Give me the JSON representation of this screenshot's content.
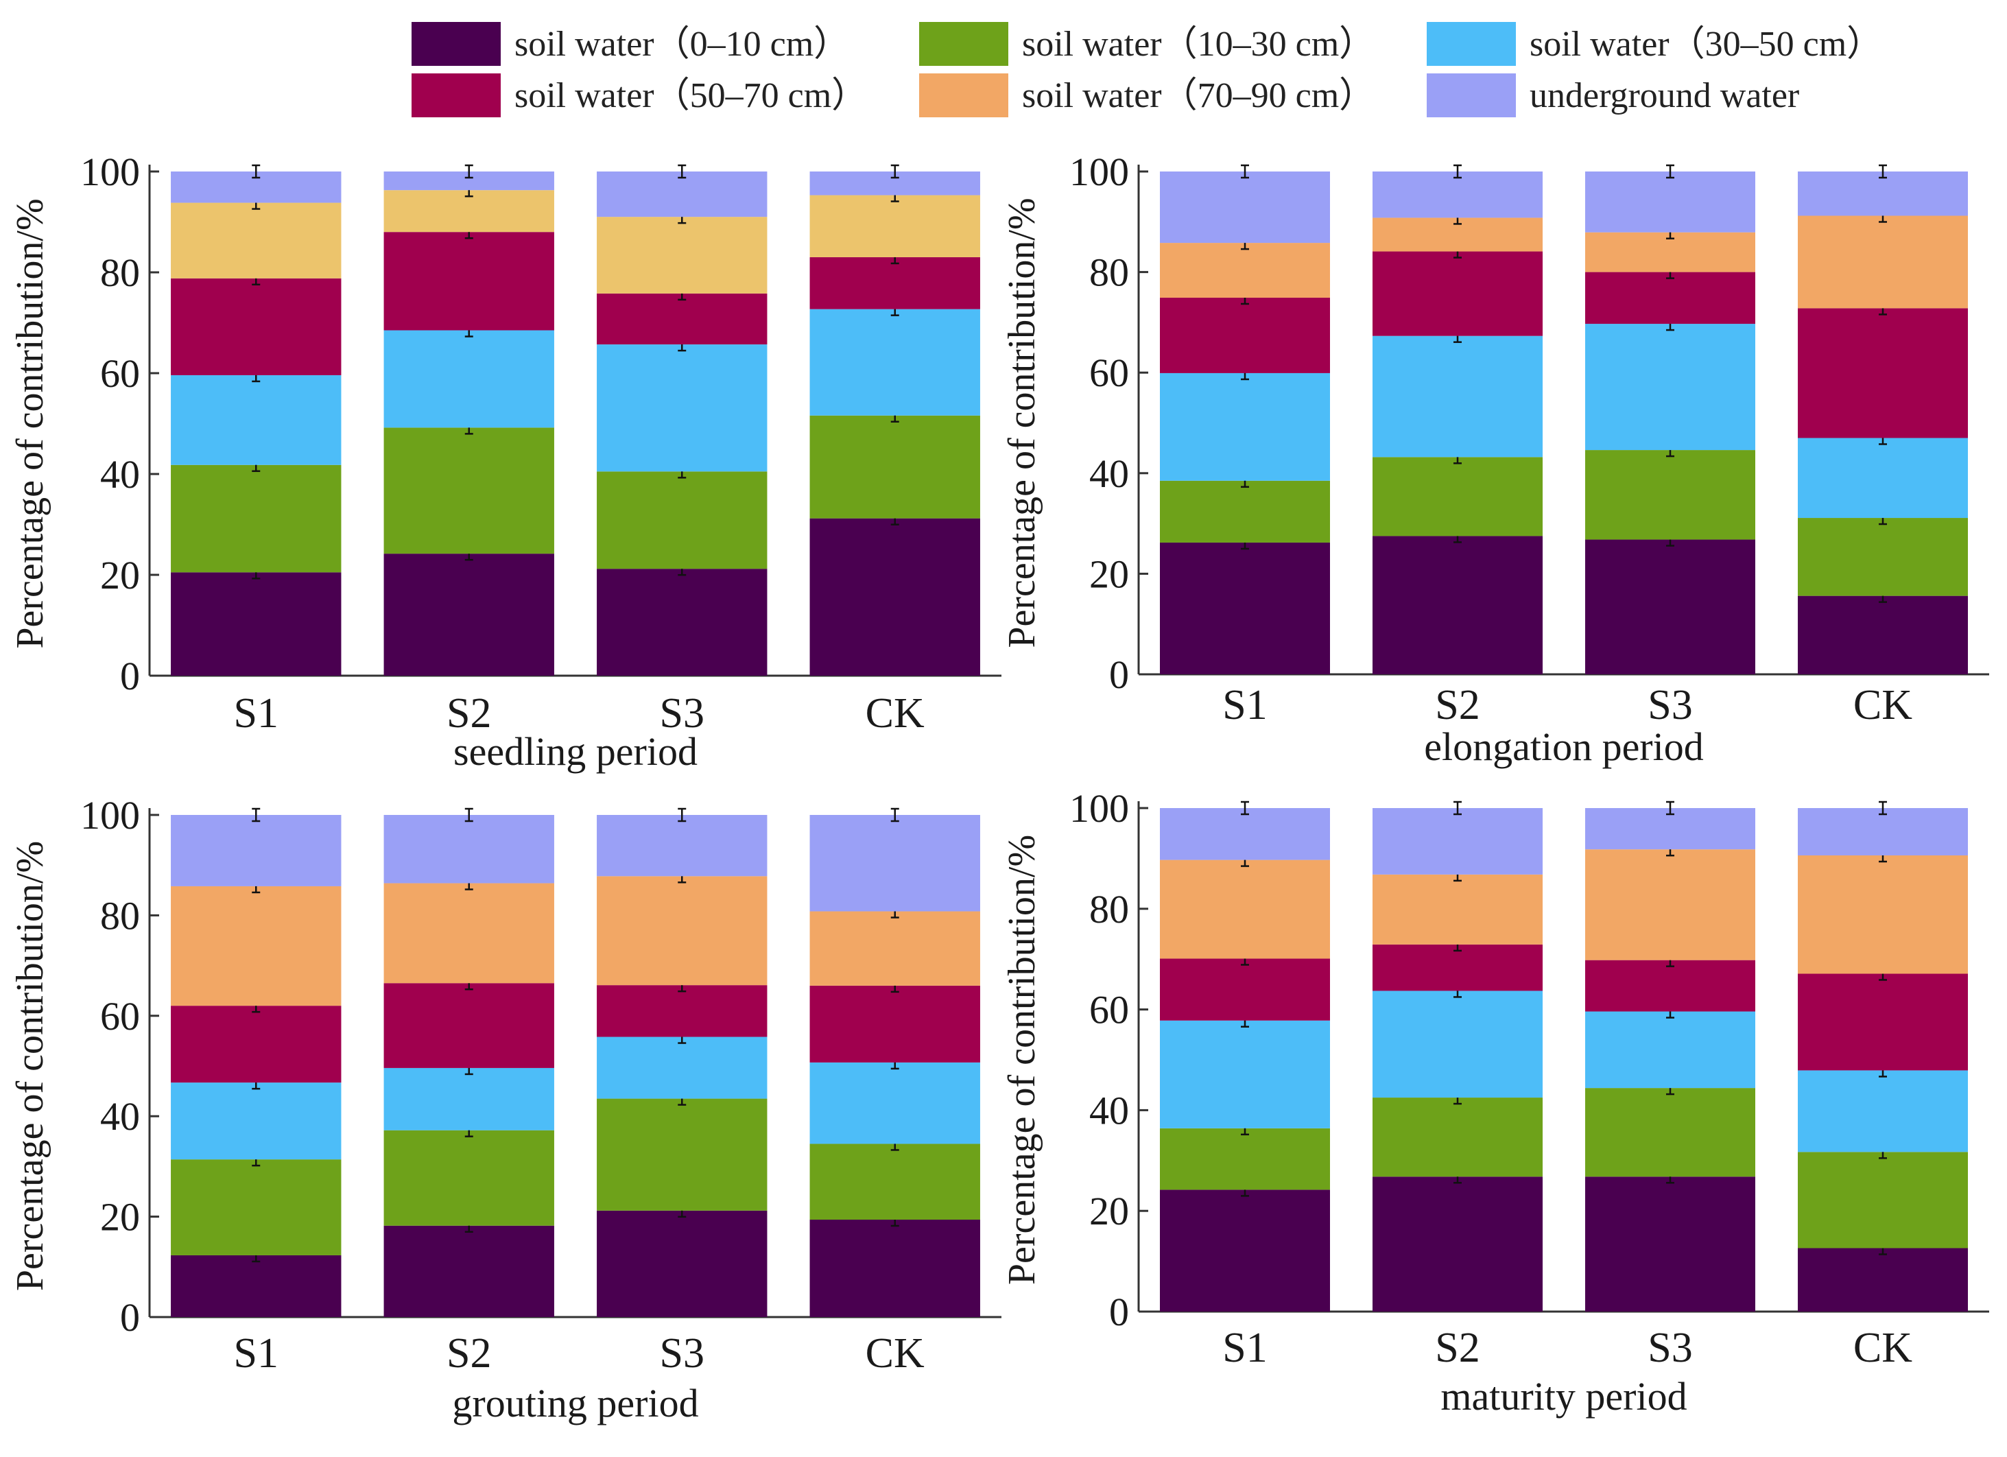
{
  "legend": [
    {
      "name": "soil water（0–10 cm）",
      "color": "#4a0050"
    },
    {
      "name": "soil water（10–30 cm）",
      "color": "#6ea21a"
    },
    {
      "name": "soil water（30–50 cm）",
      "color": "#4dbdf8"
    },
    {
      "name": "soil water（50–70 cm）",
      "color": "#a0004e"
    },
    {
      "name": "soil water（70–90 cm）",
      "color": "#f2a765"
    },
    {
      "name": "underground water",
      "color": "#9aa0f6"
    }
  ],
  "chart_data": [
    {
      "type": "bar",
      "stacked": true,
      "title": "seedling period",
      "xlabel": "seedling period",
      "ylabel": "Percentage of contribution/%",
      "ylim": [
        0,
        100
      ],
      "yticks": [
        "0",
        "20",
        "40",
        "60",
        "80",
        "100"
      ],
      "categories": [
        "S1",
        "S2",
        "S3",
        "CK"
      ],
      "series": [
        {
          "name": "soil water（0–10 cm）",
          "color": "#4a0050",
          "values": [
            20.5,
            24.2,
            21.2,
            31.2
          ]
        },
        {
          "name": "soil water（10–30 cm）",
          "color": "#6ea21a",
          "values": [
            21.3,
            25.0,
            19.3,
            20.4
          ]
        },
        {
          "name": "soil water（30–50 cm）",
          "color": "#4dbdf8",
          "values": [
            17.8,
            19.3,
            25.2,
            21.1
          ]
        },
        {
          "name": "soil water（50–70 cm）",
          "color": "#a0004e",
          "values": [
            19.2,
            19.5,
            10.1,
            10.3
          ]
        },
        {
          "name": "soil water（70–90 cm）",
          "color": "#ecc46c",
          "values": [
            15.0,
            8.3,
            15.2,
            12.3
          ]
        },
        {
          "name": "underground water",
          "color": "#9aa0f6",
          "values": [
            6.2,
            3.7,
            9.0,
            4.7
          ]
        }
      ]
    },
    {
      "type": "bar",
      "stacked": true,
      "title": "elongation period",
      "xlabel": "elongation period",
      "ylabel": "Percentage of contribution/%",
      "ylim": [
        0,
        100
      ],
      "yticks": [
        "0",
        "20",
        "40",
        "60",
        "80",
        "100"
      ],
      "categories": [
        "S1",
        "S2",
        "S3",
        "CK"
      ],
      "series": [
        {
          "name": "soil water（0–10 cm）",
          "color": "#4a0050",
          "values": [
            26.2,
            27.5,
            26.8,
            15.6
          ]
        },
        {
          "name": "soil water（10–30 cm）",
          "color": "#6ea21a",
          "values": [
            12.3,
            15.7,
            17.8,
            15.5
          ]
        },
        {
          "name": "soil water（30–50 cm）",
          "color": "#4dbdf8",
          "values": [
            21.4,
            24.1,
            25.1,
            15.9
          ]
        },
        {
          "name": "soil water（50–70 cm）",
          "color": "#a0004e",
          "values": [
            15.0,
            16.8,
            10.3,
            25.8
          ]
        },
        {
          "name": "soil water（70–90 cm）",
          "color": "#f2a765",
          "values": [
            10.9,
            6.7,
            7.9,
            18.4
          ]
        },
        {
          "name": "underground water",
          "color": "#9aa0f6",
          "values": [
            14.2,
            9.2,
            12.1,
            8.8
          ]
        }
      ]
    },
    {
      "type": "bar",
      "stacked": true,
      "title": "grouting period",
      "xlabel": "grouting period",
      "ylabel": "Percentage of contribution/%",
      "ylim": [
        0,
        100
      ],
      "yticks": [
        "0",
        "20",
        "40",
        "60",
        "80",
        "100"
      ],
      "categories": [
        "S1",
        "S2",
        "S3",
        "CK"
      ],
      "series": [
        {
          "name": "soil water（0–10 cm）",
          "color": "#4a0050",
          "values": [
            12.3,
            18.2,
            21.2,
            19.4
          ]
        },
        {
          "name": "soil water（10–30 cm）",
          "color": "#6ea21a",
          "values": [
            19.1,
            19.0,
            22.3,
            15.1
          ]
        },
        {
          "name": "soil water（30–50 cm）",
          "color": "#4dbdf8",
          "values": [
            15.3,
            12.4,
            12.3,
            16.2
          ]
        },
        {
          "name": "soil water（50–70 cm）",
          "color": "#a0004e",
          "values": [
            15.3,
            16.9,
            10.3,
            15.3
          ]
        },
        {
          "name": "soil water（70–90 cm）",
          "color": "#f2a765",
          "values": [
            23.8,
            19.9,
            21.7,
            14.8
          ]
        },
        {
          "name": "underground water",
          "color": "#9aa0f6",
          "values": [
            14.2,
            13.6,
            12.2,
            19.2
          ]
        }
      ]
    },
    {
      "type": "bar",
      "stacked": true,
      "title": "maturity period",
      "xlabel": "maturity period",
      "ylabel": "Percentage of contribution/%",
      "ylim": [
        0,
        100
      ],
      "yticks": [
        "0",
        "20",
        "40",
        "60",
        "80",
        "100"
      ],
      "categories": [
        "S1",
        "S2",
        "S3",
        "CK"
      ],
      "series": [
        {
          "name": "soil water（0–10 cm）",
          "color": "#4a0050",
          "values": [
            24.2,
            26.8,
            26.8,
            12.6
          ]
        },
        {
          "name": "soil water（10–30 cm）",
          "color": "#6ea21a",
          "values": [
            12.2,
            15.7,
            17.6,
            19.1
          ]
        },
        {
          "name": "soil water（30–50 cm）",
          "color": "#4dbdf8",
          "values": [
            21.4,
            21.2,
            15.2,
            16.2
          ]
        },
        {
          "name": "soil water（50–70 cm）",
          "color": "#a0004e",
          "values": [
            12.3,
            9.2,
            10.2,
            19.2
          ]
        },
        {
          "name": "soil water（70–90 cm）",
          "color": "#f2a765",
          "values": [
            19.6,
            13.9,
            22.0,
            23.5
          ]
        },
        {
          "name": "underground water",
          "color": "#9aa0f6",
          "values": [
            10.3,
            13.2,
            8.2,
            9.4
          ]
        }
      ]
    }
  ]
}
